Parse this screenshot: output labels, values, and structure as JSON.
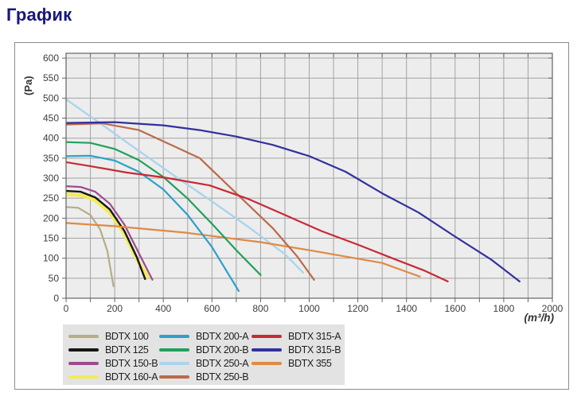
{
  "page": {
    "title": "График"
  },
  "chart_data": {
    "type": "line",
    "title": "",
    "xlabel": "(m³/h)",
    "ylabel": "(Pa)",
    "xlim": [
      0,
      2000
    ],
    "ylim": [
      0,
      612
    ],
    "grid": true,
    "grid_x_step": 100,
    "grid_y_step": 50,
    "x_ticks_labeled": [
      0,
      200,
      400,
      600,
      800,
      1000,
      1200,
      1400,
      1600,
      1800,
      2000
    ],
    "y_ticks_labeled": [
      0,
      50,
      100,
      150,
      200,
      250,
      300,
      350,
      400,
      450,
      500,
      550,
      600
    ],
    "legend_position": "bottom",
    "legend_columns": 3,
    "plot_background": "#ededed",
    "gridline_color": "#a3a3a3",
    "series": [
      {
        "name": "BDTX 100",
        "color": "#b5ad87",
        "width": 2.2,
        "points": [
          [
            0,
            228
          ],
          [
            50,
            226
          ],
          [
            100,
            208
          ],
          [
            140,
            172
          ],
          [
            170,
            118
          ],
          [
            195,
            30
          ]
        ]
      },
      {
        "name": "BDTX 125",
        "color": "#161616",
        "width": 2.4,
        "points": [
          [
            0,
            268
          ],
          [
            60,
            266
          ],
          [
            120,
            252
          ],
          [
            180,
            222
          ],
          [
            240,
            168
          ],
          [
            290,
            104
          ],
          [
            325,
            48
          ]
        ]
      },
      {
        "name": "BDTX 150-B",
        "color": "#9e4b8e",
        "width": 2.2,
        "points": [
          [
            0,
            280
          ],
          [
            60,
            278
          ],
          [
            120,
            266
          ],
          [
            180,
            236
          ],
          [
            240,
            184
          ],
          [
            300,
            112
          ],
          [
            355,
            46
          ]
        ]
      },
      {
        "name": "BDTX 160-A",
        "color": "#f3eb57",
        "width": 4.5,
        "points": [
          [
            0,
            260
          ],
          [
            60,
            258
          ],
          [
            120,
            245
          ],
          [
            180,
            214
          ],
          [
            240,
            161
          ],
          [
            290,
            98
          ],
          [
            335,
            54
          ]
        ]
      },
      {
        "name": "BDTX 200-A",
        "color": "#2da0c8",
        "width": 2.2,
        "points": [
          [
            0,
            355
          ],
          [
            100,
            356
          ],
          [
            200,
            344
          ],
          [
            300,
            316
          ],
          [
            400,
            272
          ],
          [
            500,
            208
          ],
          [
            600,
            128
          ],
          [
            710,
            18
          ]
        ]
      },
      {
        "name": "BDTX 200-B",
        "color": "#21a05c",
        "width": 2.2,
        "points": [
          [
            0,
            390
          ],
          [
            100,
            388
          ],
          [
            200,
            373
          ],
          [
            300,
            345
          ],
          [
            400,
            303
          ],
          [
            500,
            249
          ],
          [
            600,
            186
          ],
          [
            700,
            120
          ],
          [
            800,
            58
          ]
        ]
      },
      {
        "name": "BDTX 250-A",
        "color": "#abd4ed",
        "width": 2.4,
        "points": [
          [
            0,
            497
          ],
          [
            150,
            433
          ],
          [
            300,
            368
          ],
          [
            450,
            304
          ],
          [
            600,
            242
          ],
          [
            750,
            178
          ],
          [
            900,
            110
          ],
          [
            975,
            64
          ]
        ]
      },
      {
        "name": "BDTX 250-B",
        "color": "#bc6b49",
        "width": 2.2,
        "points": [
          [
            0,
            434
          ],
          [
            150,
            437
          ],
          [
            300,
            420
          ],
          [
            450,
            378
          ],
          [
            550,
            350
          ],
          [
            700,
            262
          ],
          [
            850,
            175
          ],
          [
            950,
            105
          ],
          [
            1020,
            46
          ]
        ]
      },
      {
        "name": "BDTX 315-A",
        "color": "#c82a33",
        "width": 2.2,
        "points": [
          [
            0,
            340
          ],
          [
            100,
            330
          ],
          [
            250,
            314
          ],
          [
            400,
            302
          ],
          [
            590,
            282
          ],
          [
            750,
            248
          ],
          [
            900,
            208
          ],
          [
            1050,
            168
          ],
          [
            1200,
            134
          ],
          [
            1350,
            98
          ],
          [
            1470,
            70
          ],
          [
            1570,
            42
          ]
        ]
      },
      {
        "name": "BDTX 315-B",
        "color": "#31319e",
        "width": 2.2,
        "points": [
          [
            0,
            438
          ],
          [
            200,
            440
          ],
          [
            400,
            432
          ],
          [
            550,
            420
          ],
          [
            700,
            404
          ],
          [
            850,
            383
          ],
          [
            1000,
            355
          ],
          [
            1150,
            316
          ],
          [
            1300,
            262
          ],
          [
            1450,
            214
          ],
          [
            1600,
            154
          ],
          [
            1750,
            96
          ],
          [
            1865,
            42
          ]
        ]
      },
      {
        "name": "BDTX 355",
        "color": "#e18a42",
        "width": 2.2,
        "points": [
          [
            0,
            188
          ],
          [
            200,
            180
          ],
          [
            490,
            164
          ],
          [
            800,
            140
          ],
          [
            1000,
            120
          ],
          [
            1300,
            88
          ],
          [
            1455,
            54
          ]
        ]
      }
    ],
    "draw_order": [
      "BDTX 250-A",
      "BDTX 100",
      "BDTX 160-A",
      "BDTX 125",
      "BDTX 150-B",
      "BDTX 355",
      "BDTX 200-A",
      "BDTX 200-B",
      "BDTX 250-B",
      "BDTX 315-A",
      "BDTX 315-B"
    ]
  }
}
